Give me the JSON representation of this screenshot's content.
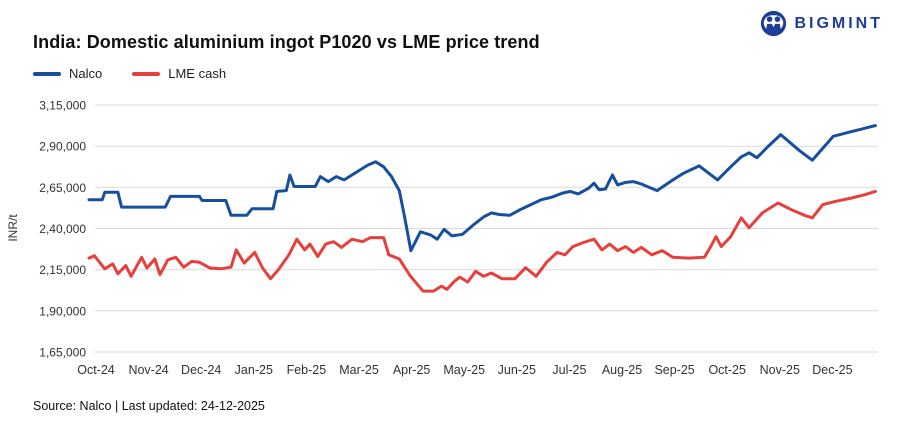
{
  "title": "India: Domestic aluminium ingot P1020 vs LME price trend",
  "logo": {
    "text": "BIGMINT",
    "color": "#1e3d96"
  },
  "legend": [
    {
      "label": "Nalco",
      "color": "#164f9e"
    },
    {
      "label": "LME cash",
      "color": "#e7403c"
    }
  ],
  "footer": {
    "text": "Source: Nalco | Last updated: 24-12-2025"
  },
  "chart_data": {
    "type": "line",
    "title": "India: Domestic aluminium ingot P1020 vs LME price trend",
    "xlabel": "",
    "ylabel": "INR/t",
    "ylim": [
      165000,
      315000
    ],
    "xlim": [
      0,
      15
    ],
    "grid": true,
    "legend_position": "top-left",
    "yticks": [
      {
        "value": 315000,
        "label": "3,15,000"
      },
      {
        "value": 290000,
        "label": "2,90,000"
      },
      {
        "value": 265000,
        "label": "2,65,000"
      },
      {
        "value": 240000,
        "label": "2,40,000"
      },
      {
        "value": 215000,
        "label": "2,15,000"
      },
      {
        "value": 190000,
        "label": "1,90,000"
      },
      {
        "value": 165000,
        "label": "1,65,000"
      }
    ],
    "xticks": [
      "Oct-24",
      "Nov-24",
      "Dec-24",
      "Jan-25",
      "Feb-25",
      "Mar-25",
      "Apr-25",
      "May-25",
      "Jun-25",
      "Jul-25",
      "Aug-25",
      "Sep-25",
      "Oct-25",
      "Nov-25",
      "Dec-25"
    ],
    "series": [
      {
        "name": "Nalco",
        "color": "#164f9e",
        "points": [
          [
            0,
            257500
          ],
          [
            0.25,
            257500
          ],
          [
            0.3,
            262000
          ],
          [
            0.55,
            262000
          ],
          [
            0.62,
            253000
          ],
          [
            1.45,
            253000
          ],
          [
            1.55,
            259500
          ],
          [
            2.1,
            259500
          ],
          [
            2.15,
            257000
          ],
          [
            2.6,
            257000
          ],
          [
            2.7,
            248000
          ],
          [
            3.0,
            248000
          ],
          [
            3.1,
            252000
          ],
          [
            3.5,
            252000
          ],
          [
            3.57,
            262500
          ],
          [
            3.75,
            263000
          ],
          [
            3.82,
            272500
          ],
          [
            3.9,
            265500
          ],
          [
            4.3,
            265500
          ],
          [
            4.4,
            271500
          ],
          [
            4.55,
            268500
          ],
          [
            4.7,
            271500
          ],
          [
            4.85,
            269500
          ],
          [
            5.0,
            272500
          ],
          [
            5.15,
            275500
          ],
          [
            5.3,
            278500
          ],
          [
            5.45,
            280500
          ],
          [
            5.6,
            277500
          ],
          [
            5.75,
            271500
          ],
          [
            5.9,
            263000
          ],
          [
            6.0,
            247000
          ],
          [
            6.12,
            226500
          ],
          [
            6.3,
            238000
          ],
          [
            6.5,
            236000
          ],
          [
            6.62,
            233500
          ],
          [
            6.75,
            239500
          ],
          [
            6.9,
            235500
          ],
          [
            7.1,
            236500
          ],
          [
            7.3,
            242000
          ],
          [
            7.5,
            247000
          ],
          [
            7.65,
            249500
          ],
          [
            7.8,
            248500
          ],
          [
            8.0,
            248000
          ],
          [
            8.2,
            251500
          ],
          [
            8.4,
            254500
          ],
          [
            8.6,
            257500
          ],
          [
            8.8,
            259000
          ],
          [
            9.0,
            261500
          ],
          [
            9.15,
            262500
          ],
          [
            9.3,
            261000
          ],
          [
            9.5,
            264500
          ],
          [
            9.6,
            267500
          ],
          [
            9.7,
            263500
          ],
          [
            9.82,
            264000
          ],
          [
            9.95,
            272500
          ],
          [
            10.05,
            266500
          ],
          [
            10.2,
            268000
          ],
          [
            10.35,
            268500
          ],
          [
            10.5,
            267000
          ],
          [
            10.8,
            263000
          ],
          [
            11.1,
            269500
          ],
          [
            11.3,
            273500
          ],
          [
            11.6,
            278000
          ],
          [
            11.95,
            269500
          ],
          [
            12.2,
            277500
          ],
          [
            12.4,
            283500
          ],
          [
            12.55,
            286000
          ],
          [
            12.7,
            283000
          ],
          [
            12.9,
            289500
          ],
          [
            13.15,
            297000
          ],
          [
            13.5,
            287500
          ],
          [
            13.75,
            281500
          ],
          [
            14.15,
            296000
          ],
          [
            14.45,
            298500
          ],
          [
            14.7,
            300500
          ],
          [
            14.95,
            302500
          ]
        ]
      },
      {
        "name": "LME cash",
        "color": "#e7403c",
        "points": [
          [
            0,
            222000
          ],
          [
            0.1,
            223500
          ],
          [
            0.3,
            215500
          ],
          [
            0.45,
            218500
          ],
          [
            0.55,
            212500
          ],
          [
            0.7,
            217500
          ],
          [
            0.8,
            211000
          ],
          [
            1.0,
            222500
          ],
          [
            1.1,
            216000
          ],
          [
            1.25,
            221500
          ],
          [
            1.35,
            212000
          ],
          [
            1.5,
            221000
          ],
          [
            1.65,
            222500
          ],
          [
            1.8,
            216500
          ],
          [
            1.95,
            220000
          ],
          [
            2.1,
            219500
          ],
          [
            2.3,
            216000
          ],
          [
            2.5,
            215500
          ],
          [
            2.7,
            216500
          ],
          [
            2.8,
            227000
          ],
          [
            2.95,
            219000
          ],
          [
            3.15,
            225500
          ],
          [
            3.3,
            216000
          ],
          [
            3.45,
            209500
          ],
          [
            3.6,
            215000
          ],
          [
            3.8,
            224000
          ],
          [
            3.95,
            233500
          ],
          [
            4.1,
            227000
          ],
          [
            4.2,
            230500
          ],
          [
            4.35,
            223000
          ],
          [
            4.5,
            230500
          ],
          [
            4.65,
            232000
          ],
          [
            4.8,
            228500
          ],
          [
            5.0,
            233500
          ],
          [
            5.2,
            232000
          ],
          [
            5.35,
            234500
          ],
          [
            5.6,
            234500
          ],
          [
            5.7,
            224000
          ],
          [
            5.9,
            221500
          ],
          [
            6.1,
            211500
          ],
          [
            6.35,
            202000
          ],
          [
            6.55,
            202000
          ],
          [
            6.7,
            205000
          ],
          [
            6.8,
            203000
          ],
          [
            6.95,
            208000
          ],
          [
            7.05,
            210500
          ],
          [
            7.2,
            207500
          ],
          [
            7.35,
            214000
          ],
          [
            7.5,
            211000
          ],
          [
            7.65,
            213000
          ],
          [
            7.85,
            209500
          ],
          [
            8.1,
            209500
          ],
          [
            8.3,
            216200
          ],
          [
            8.5,
            211000
          ],
          [
            8.7,
            219500
          ],
          [
            8.9,
            225500
          ],
          [
            9.05,
            224000
          ],
          [
            9.2,
            229000
          ],
          [
            9.4,
            231500
          ],
          [
            9.6,
            233500
          ],
          [
            9.75,
            227000
          ],
          [
            9.9,
            230500
          ],
          [
            10.05,
            226500
          ],
          [
            10.2,
            229000
          ],
          [
            10.35,
            225500
          ],
          [
            10.5,
            228500
          ],
          [
            10.7,
            224000
          ],
          [
            10.9,
            226500
          ],
          [
            11.1,
            222500
          ],
          [
            11.4,
            222000
          ],
          [
            11.7,
            222500
          ],
          [
            11.82,
            229000
          ],
          [
            11.92,
            235000
          ],
          [
            12.02,
            229000
          ],
          [
            12.2,
            235000
          ],
          [
            12.4,
            246500
          ],
          [
            12.55,
            240500
          ],
          [
            12.8,
            249500
          ],
          [
            13.1,
            255500
          ],
          [
            13.35,
            251500
          ],
          [
            13.6,
            248000
          ],
          [
            13.75,
            246500
          ],
          [
            13.95,
            254500
          ],
          [
            14.2,
            256500
          ],
          [
            14.5,
            258500
          ],
          [
            14.75,
            260500
          ],
          [
            14.95,
            262500
          ]
        ]
      }
    ]
  }
}
